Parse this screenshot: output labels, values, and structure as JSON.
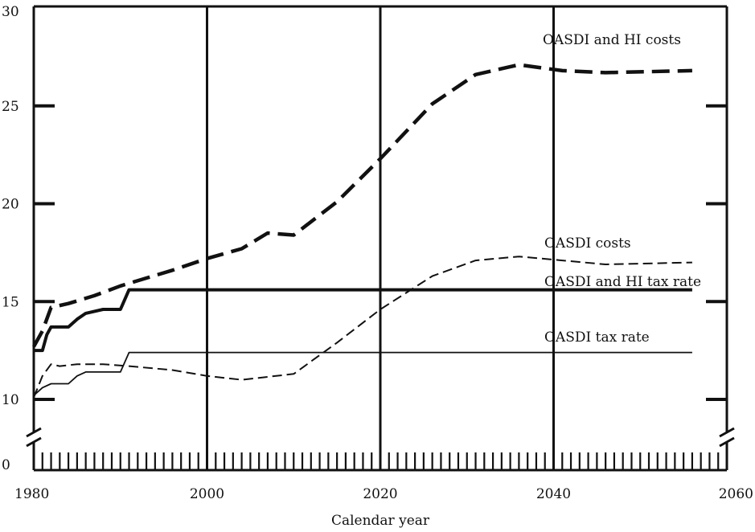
{
  "chart_data": {
    "type": "line",
    "xlabel": "Calendar year",
    "ylabel": "",
    "xlim": [
      1980,
      2060
    ],
    "ylim": [
      0,
      30
    ],
    "y_axis_break": [
      0,
      10
    ],
    "grid": "vertical lines at 2000, 2020, 2040",
    "x_ticks": [
      1980,
      2000,
      2020,
      2040,
      2060
    ],
    "y_ticks": [
      0,
      10,
      15,
      20,
      25,
      30
    ],
    "series": [
      {
        "name": "OASDI and HI costs",
        "style": "dashed",
        "weight": "heavy",
        "x": [
          1980,
          1981,
          1982,
          1984,
          1987,
          1990,
          1993,
          1996,
          2000,
          2004,
          2007,
          2010,
          2015,
          2020,
          2026,
          2031,
          2036,
          2041,
          2046,
          2056
        ],
        "y": [
          12.7,
          13.5,
          14.7,
          14.9,
          15.3,
          15.8,
          16.2,
          16.6,
          17.2,
          17.7,
          18.5,
          18.4,
          20.1,
          22.3,
          25.1,
          26.6,
          27.1,
          26.8,
          26.7,
          26.8
        ]
      },
      {
        "name": "OASDI costs",
        "style": "dashed",
        "weight": "light",
        "x": [
          1980,
          1981,
          1982,
          1983,
          1985,
          1988,
          1991,
          1996,
          2000,
          2004,
          2010,
          2015,
          2020,
          2026,
          2031,
          2036,
          2041,
          2046,
          2056
        ],
        "y": [
          10.1,
          11.2,
          11.8,
          11.7,
          11.8,
          11.8,
          11.7,
          11.5,
          11.2,
          11.0,
          11.3,
          12.9,
          14.6,
          16.3,
          17.1,
          17.3,
          17.1,
          16.9,
          17.0
        ]
      },
      {
        "name": "OASDI and HI tax rate",
        "style": "solid",
        "weight": "heavy",
        "x": [
          1980,
          1981,
          1981.5,
          1982,
          1984,
          1985,
          1986,
          1988,
          1990,
          1991,
          2056
        ],
        "y": [
          12.5,
          12.5,
          13.3,
          13.7,
          13.7,
          14.1,
          14.4,
          14.6,
          14.6,
          15.6,
          15.6
        ]
      },
      {
        "name": "OASDI tax rate",
        "style": "solid",
        "weight": "light",
        "x": [
          1980,
          1981,
          1982,
          1984,
          1985,
          1986,
          1988,
          1990,
          1991,
          2056
        ],
        "y": [
          10.2,
          10.6,
          10.8,
          10.8,
          11.2,
          11.4,
          11.4,
          11.4,
          12.4,
          12.4
        ]
      }
    ]
  }
}
